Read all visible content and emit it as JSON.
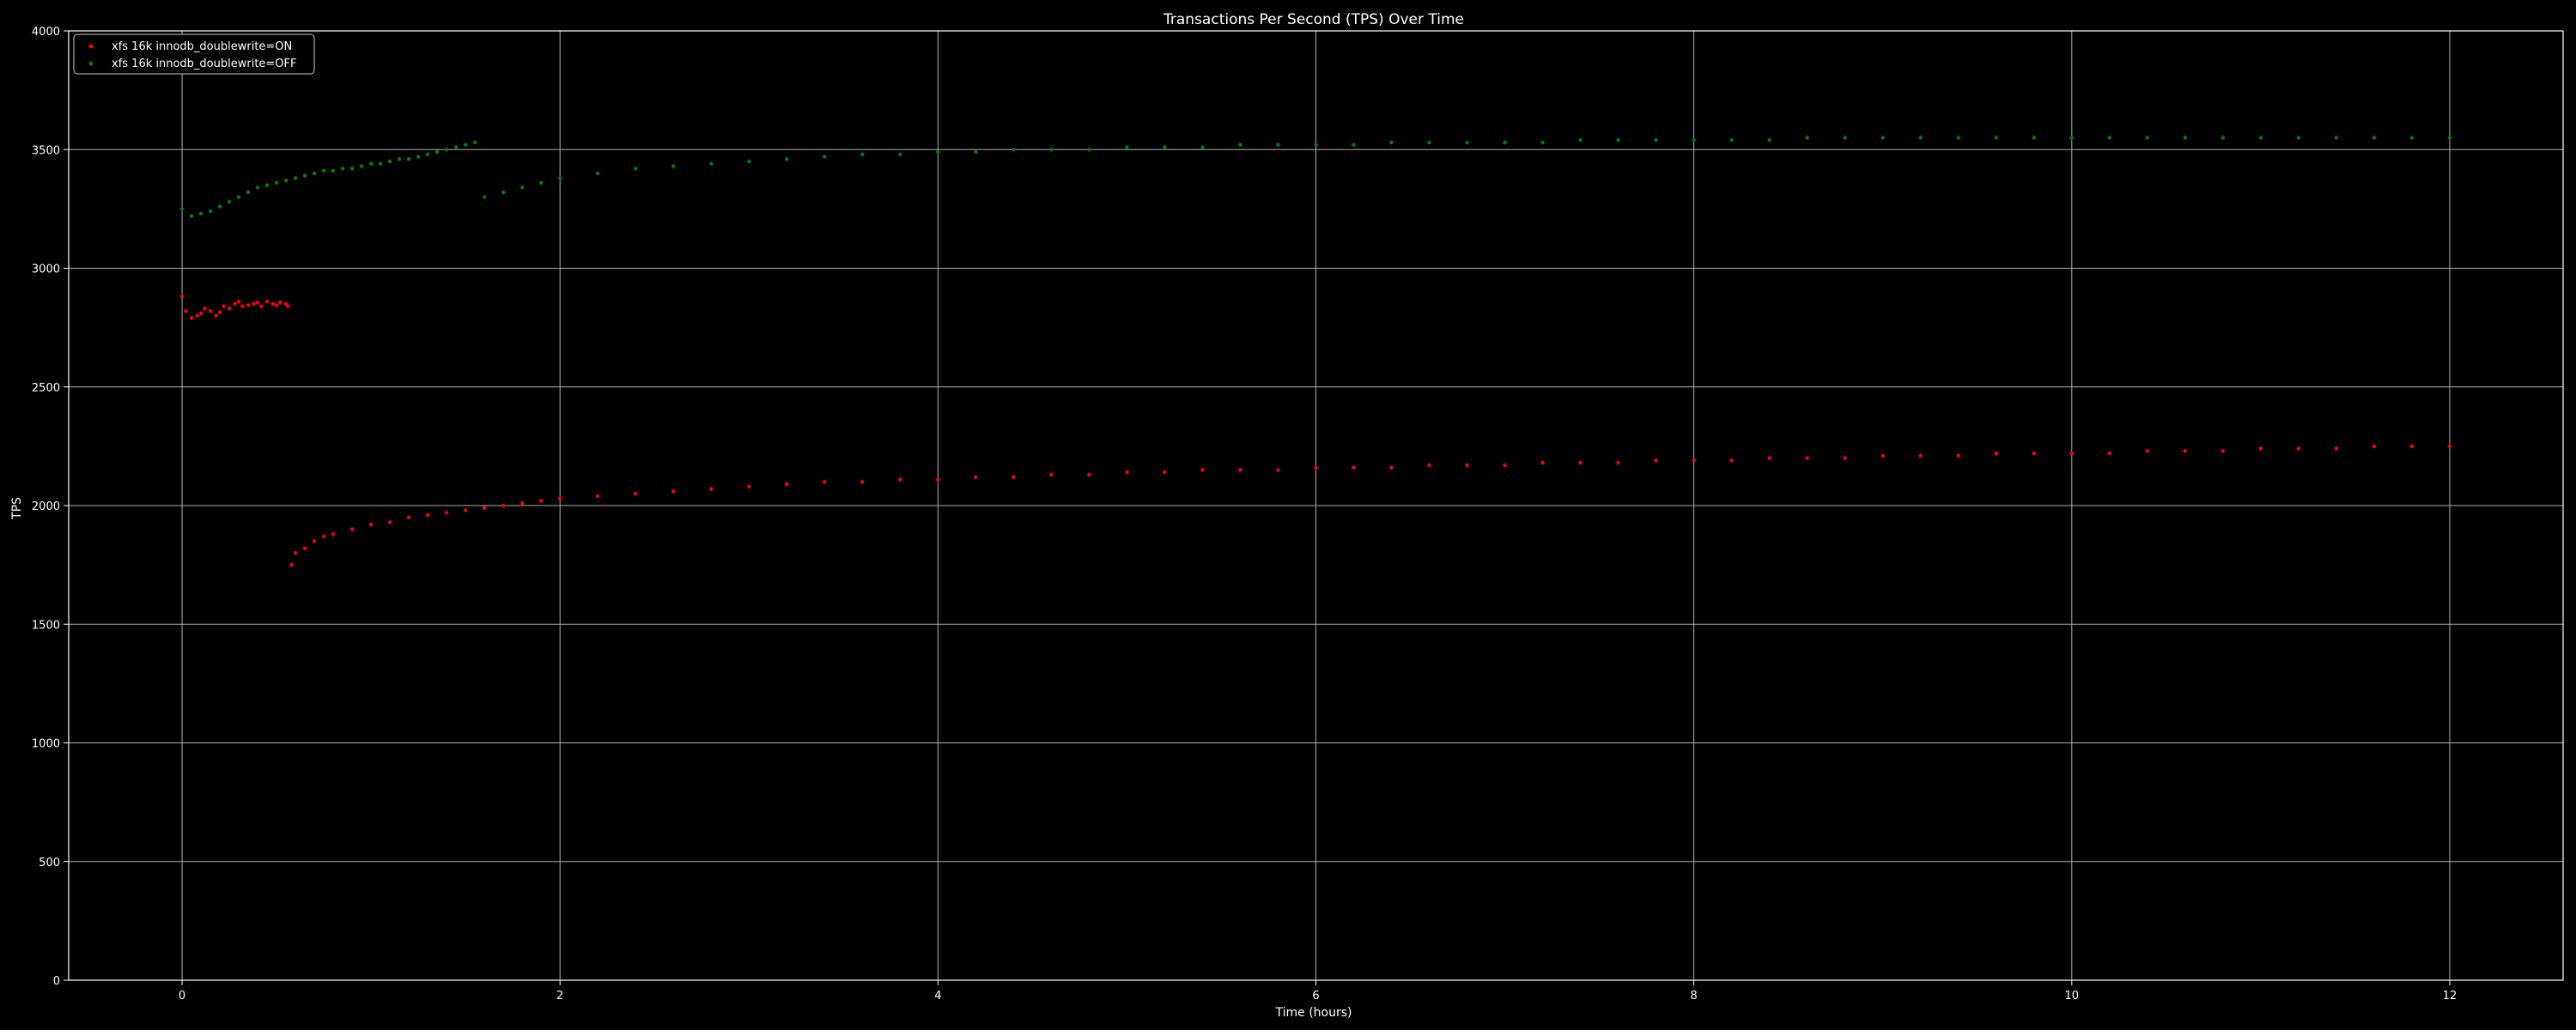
{
  "chart_data": {
    "type": "scatter",
    "title": "Transactions Per Second (TPS) Over Time",
    "xlabel": "Time (hours)",
    "ylabel": "TPS",
    "xlim": [
      -0.6,
      12.6
    ],
    "ylim": [
      0,
      4000
    ],
    "xticks": [
      0,
      2,
      4,
      6,
      8,
      10,
      12
    ],
    "yticks": [
      0,
      500,
      1000,
      1500,
      2000,
      2500,
      3000,
      3500,
      4000
    ],
    "grid": true,
    "legend_position": "top-left",
    "background": "#000000",
    "series": [
      {
        "name": "xfs 16k innodb_doublewrite=ON",
        "color": "#ff0000",
        "x": [
          0.0,
          0.02,
          0.05,
          0.08,
          0.1,
          0.12,
          0.15,
          0.18,
          0.2,
          0.22,
          0.25,
          0.28,
          0.3,
          0.32,
          0.35,
          0.38,
          0.4,
          0.42,
          0.45,
          0.48,
          0.5,
          0.52,
          0.55,
          0.56,
          0.58,
          0.6,
          0.65,
          0.7,
          0.75,
          0.8,
          0.9,
          1.0,
          1.1,
          1.2,
          1.3,
          1.4,
          1.5,
          1.6,
          1.7,
          1.8,
          1.9,
          2.0,
          2.2,
          2.4,
          2.6,
          2.8,
          3.0,
          3.2,
          3.4,
          3.6,
          3.8,
          4.0,
          4.2,
          4.4,
          4.6,
          4.8,
          5.0,
          5.2,
          5.4,
          5.6,
          5.8,
          6.0,
          6.2,
          6.4,
          6.6,
          6.8,
          7.0,
          7.2,
          7.4,
          7.6,
          7.8,
          8.0,
          8.2,
          8.4,
          8.6,
          8.8,
          9.0,
          9.2,
          9.4,
          9.6,
          9.8,
          10.0,
          10.2,
          10.4,
          10.6,
          10.8,
          11.0,
          11.2,
          11.4,
          11.6,
          11.8,
          12.0
        ],
        "y": [
          2880,
          2820,
          2790,
          2800,
          2810,
          2830,
          2820,
          2800,
          2815,
          2840,
          2830,
          2850,
          2860,
          2840,
          2845,
          2850,
          2855,
          2840,
          2860,
          2850,
          2845,
          2855,
          2850,
          2840,
          1750,
          1800,
          1820,
          1850,
          1870,
          1880,
          1900,
          1920,
          1930,
          1950,
          1960,
          1970,
          1980,
          1990,
          2000,
          2010,
          2020,
          2030,
          2040,
          2050,
          2060,
          2070,
          2080,
          2090,
          2100,
          2100,
          2110,
          2110,
          2120,
          2120,
          2130,
          2130,
          2140,
          2140,
          2150,
          2150,
          2150,
          2160,
          2160,
          2160,
          2170,
          2170,
          2170,
          2180,
          2180,
          2180,
          2190,
          2190,
          2190,
          2200,
          2200,
          2200,
          2210,
          2210,
          2210,
          2220,
          2220,
          2220,
          2220,
          2230,
          2230,
          2230,
          2240,
          2240,
          2240,
          2250,
          2250,
          2250
        ]
      },
      {
        "name": "xfs 16k innodb_doublewrite=OFF",
        "color": "#008000",
        "x": [
          0.0,
          0.05,
          0.1,
          0.15,
          0.2,
          0.25,
          0.3,
          0.35,
          0.4,
          0.45,
          0.5,
          0.55,
          0.6,
          0.65,
          0.7,
          0.75,
          0.8,
          0.85,
          0.9,
          0.95,
          1.0,
          1.05,
          1.1,
          1.15,
          1.2,
          1.25,
          1.3,
          1.35,
          1.4,
          1.45,
          1.5,
          1.55,
          1.6,
          1.7,
          1.8,
          1.9,
          2.0,
          2.2,
          2.4,
          2.6,
          2.8,
          3.0,
          3.2,
          3.4,
          3.6,
          3.8,
          4.0,
          4.2,
          4.4,
          4.6,
          4.8,
          5.0,
          5.2,
          5.4,
          5.6,
          5.8,
          6.0,
          6.2,
          6.4,
          6.6,
          6.8,
          7.0,
          7.2,
          7.4,
          7.6,
          7.8,
          8.0,
          8.2,
          8.4,
          8.6,
          8.8,
          9.0,
          9.2,
          9.4,
          9.6,
          9.8,
          10.0,
          10.2,
          10.4,
          10.6,
          10.8,
          11.0,
          11.2,
          11.4,
          11.6,
          11.8,
          12.0
        ],
        "y": [
          3250,
          3220,
          3230,
          3240,
          3260,
          3280,
          3300,
          3320,
          3340,
          3350,
          3360,
          3370,
          3380,
          3390,
          3400,
          3410,
          3410,
          3420,
          3420,
          3430,
          3440,
          3440,
          3450,
          3460,
          3460,
          3470,
          3480,
          3490,
          3500,
          3510,
          3520,
          3530,
          3300,
          3320,
          3340,
          3360,
          3380,
          3400,
          3420,
          3430,
          3440,
          3450,
          3460,
          3470,
          3480,
          3480,
          3490,
          3490,
          3500,
          3500,
          3500,
          3510,
          3510,
          3510,
          3520,
          3520,
          3520,
          3520,
          3530,
          3530,
          3530,
          3530,
          3530,
          3540,
          3540,
          3540,
          3540,
          3540,
          3540,
          3550,
          3550,
          3550,
          3550,
          3550,
          3550,
          3550,
          3550,
          3550,
          3550,
          3550,
          3550,
          3550,
          3550,
          3550,
          3550,
          3550,
          3550
        ]
      }
    ]
  }
}
